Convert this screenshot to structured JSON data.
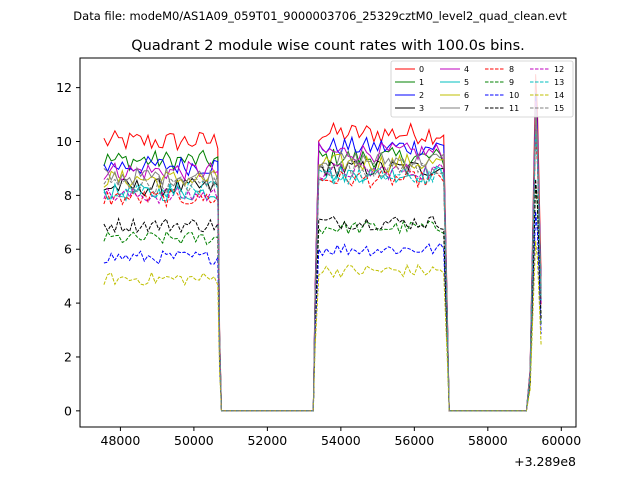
{
  "header": {
    "data_file": "Data file: modeM0/AS1A09_059T01_9000003706_25329cztM0_level2_quad_clean.evt"
  },
  "chart_data": {
    "type": "line",
    "title": "Quadrant 2 module wise count rates with 100.0s bins.",
    "xlabel": "",
    "ylabel": "",
    "x_offset_label": "+3.289e8",
    "xlim": [
      46900,
      60400
    ],
    "ylim": [
      -0.6,
      13.1
    ],
    "x_ticks": [
      48000,
      50000,
      52000,
      54000,
      56000,
      58000,
      60000
    ],
    "x_tick_labels": [
      "48000",
      "50000",
      "52000",
      "54000",
      "56000",
      "58000",
      "60000"
    ],
    "y_ticks": [
      0,
      2,
      4,
      6,
      8,
      10,
      12
    ],
    "y_tick_labels": [
      "0",
      "2",
      "4",
      "6",
      "8",
      "10",
      "12"
    ],
    "grid": false,
    "legend_placement": "top-right",
    "legend_columns": 4,
    "segments": [
      {
        "start": 47550,
        "end": 50650
      },
      {
        "start": 53300,
        "end": 56850
      },
      {
        "start": 59150,
        "end": 59450
      }
    ],
    "gaps": [
      {
        "start": 50750,
        "end": 53250
      },
      {
        "start": 56950,
        "end": 59050
      }
    ],
    "series": [
      {
        "name": "0",
        "color": "#ff0000",
        "dash": "solid",
        "level_seg1": 10.0,
        "level_seg2": 10.3,
        "peak_seg3": 12.5
      },
      {
        "name": "1",
        "color": "#008000",
        "dash": "solid",
        "level_seg1": 9.3,
        "level_seg2": 9.4,
        "peak_seg3": 11.2
      },
      {
        "name": "2",
        "color": "#0000ff",
        "dash": "solid",
        "level_seg1": 9.1,
        "level_seg2": 9.8,
        "peak_seg3": 11.8
      },
      {
        "name": "3",
        "color": "#000000",
        "dash": "solid",
        "level_seg1": 8.3,
        "level_seg2": 9.0,
        "peak_seg3": 10.8
      },
      {
        "name": "4",
        "color": "#bf00bf",
        "dash": "solid",
        "level_seg1": 8.9,
        "level_seg2": 9.6,
        "peak_seg3": 11.5
      },
      {
        "name": "5",
        "color": "#00bfbf",
        "dash": "solid",
        "level_seg1": 8.1,
        "level_seg2": 8.8,
        "peak_seg3": 10.5
      },
      {
        "name": "6",
        "color": "#bfbf00",
        "dash": "solid",
        "level_seg1": 8.6,
        "level_seg2": 9.2,
        "peak_seg3": 11.0
      },
      {
        "name": "7",
        "color": "#808080",
        "dash": "solid",
        "level_seg1": 8.7,
        "level_seg2": 9.3,
        "peak_seg3": 11.3
      },
      {
        "name": "8",
        "color": "#ff0000",
        "dash": "dashed",
        "level_seg1": 7.9,
        "level_seg2": 8.6,
        "peak_seg3": 10.2
      },
      {
        "name": "9",
        "color": "#008000",
        "dash": "dashed",
        "level_seg1": 6.4,
        "level_seg2": 6.8,
        "peak_seg3": 8.4
      },
      {
        "name": "10",
        "color": "#0000ff",
        "dash": "dashed",
        "level_seg1": 5.7,
        "level_seg2": 6.0,
        "peak_seg3": 7.4
      },
      {
        "name": "11",
        "color": "#000000",
        "dash": "dashed",
        "level_seg1": 6.9,
        "level_seg2": 7.0,
        "peak_seg3": 8.6
      },
      {
        "name": "12",
        "color": "#bf00bf",
        "dash": "dashed",
        "level_seg1": 8.0,
        "level_seg2": 8.9,
        "peak_seg3": 10.6
      },
      {
        "name": "13",
        "color": "#00bfbf",
        "dash": "dashed",
        "level_seg1": 8.2,
        "level_seg2": 8.7,
        "peak_seg3": 10.4
      },
      {
        "name": "14",
        "color": "#bfbf00",
        "dash": "dashed",
        "level_seg1": 4.9,
        "level_seg2": 5.2,
        "peak_seg3": 6.3
      },
      {
        "name": "15",
        "color": "#808080",
        "dash": "dashed",
        "level_seg1": 8.4,
        "level_seg2": 9.0,
        "peak_seg3": 10.7
      }
    ]
  }
}
